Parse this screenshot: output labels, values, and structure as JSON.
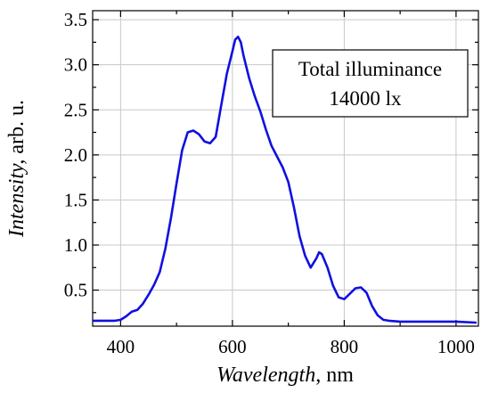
{
  "chart_data": {
    "type": "line",
    "xlabel": "Wavelength",
    "xlabel_unit": ", nm",
    "ylabel": "Intensity,",
    "ylabel_unit": " arb. u.",
    "xlim": [
      350,
      1040
    ],
    "ylim": [
      0.1,
      3.6
    ],
    "x_ticks": [
      400,
      600,
      800,
      1000
    ],
    "x_tick_labels": [
      "400",
      "600",
      "800",
      "1000"
    ],
    "y_ticks": [
      0.5,
      1.0,
      1.5,
      2.0,
      2.5,
      3.0,
      3.5
    ],
    "y_tick_labels": [
      "0.5",
      "1.0",
      "1.5",
      "2.0",
      "2.5",
      "3.0",
      "3.5"
    ],
    "grid": true,
    "annotation": {
      "line1": "Total illuminance",
      "line2": "14000 lx",
      "placement": "top-right"
    },
    "series": [
      {
        "color": "#1010e0",
        "x": [
          352,
          370,
          390,
          400,
          410,
          420,
          430,
          440,
          450,
          460,
          470,
          480,
          490,
          500,
          510,
          520,
          530,
          540,
          550,
          560,
          570,
          580,
          590,
          600,
          605,
          610,
          615,
          620,
          630,
          640,
          650,
          660,
          670,
          680,
          690,
          700,
          710,
          720,
          730,
          740,
          750,
          755,
          760,
          770,
          780,
          790,
          800,
          810,
          820,
          830,
          840,
          850,
          860,
          870,
          880,
          900,
          950,
          1000,
          1035
        ],
        "y": [
          0.16,
          0.16,
          0.16,
          0.17,
          0.21,
          0.26,
          0.28,
          0.35,
          0.45,
          0.56,
          0.7,
          0.96,
          1.3,
          1.68,
          2.05,
          2.25,
          2.27,
          2.23,
          2.15,
          2.13,
          2.2,
          2.55,
          2.9,
          3.15,
          3.28,
          3.31,
          3.25,
          3.1,
          2.85,
          2.65,
          2.48,
          2.28,
          2.1,
          1.98,
          1.86,
          1.7,
          1.42,
          1.1,
          0.88,
          0.75,
          0.85,
          0.92,
          0.9,
          0.75,
          0.55,
          0.42,
          0.4,
          0.46,
          0.52,
          0.53,
          0.47,
          0.32,
          0.22,
          0.17,
          0.16,
          0.15,
          0.15,
          0.15,
          0.14
        ]
      }
    ]
  }
}
